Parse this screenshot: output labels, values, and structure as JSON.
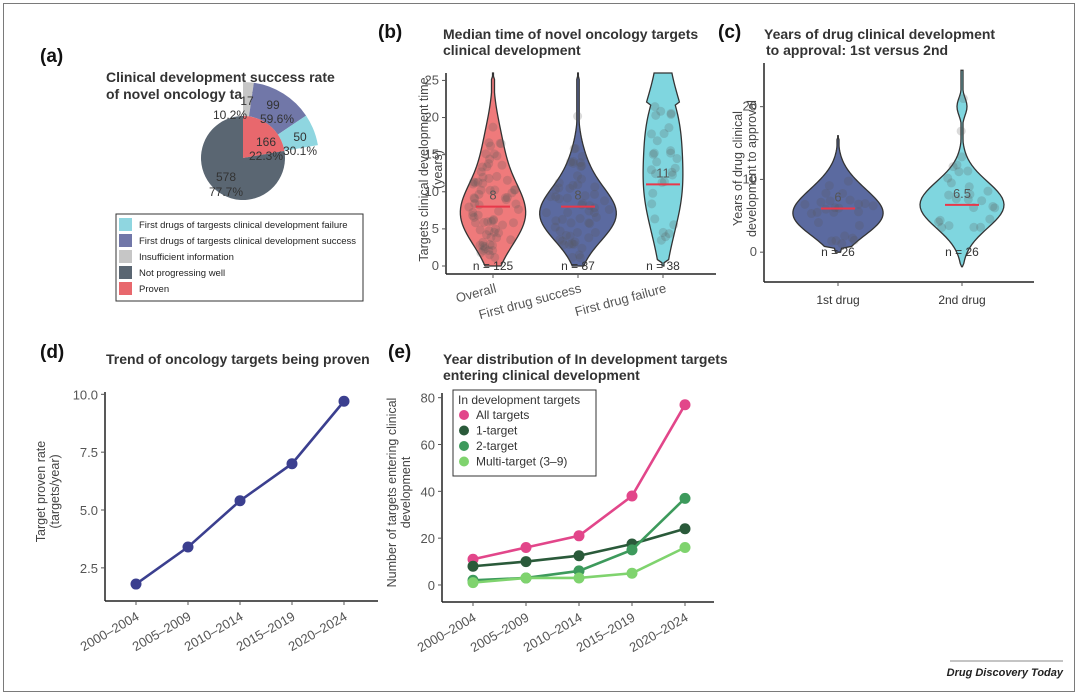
{
  "figure": {
    "credit": "Drug Discovery Today"
  },
  "chart_data": [
    {
      "id": "a",
      "panel_label": "(a)",
      "type": "pie",
      "title": [
        "Clinical development success rate",
        "of novel oncology targets"
      ],
      "inner_pie": {
        "slices": [
          {
            "name": "Proven",
            "count": 166,
            "pct": "22.3%",
            "value": 22.3,
            "color": "#e8686d"
          },
          {
            "name": "Not progressing well",
            "count": 578,
            "pct": "77.7%",
            "value": 77.7,
            "color": "#5a6672"
          }
        ]
      },
      "exploded_proven": {
        "slices": [
          {
            "name": "Insufficient information",
            "count": 17,
            "pct": "10.2%",
            "value": 10.2,
            "color": "#c6c6c6"
          },
          {
            "name": "First drugs of targests clinical development success",
            "count": 99,
            "pct": "59.6%",
            "value": 59.6,
            "color": "#7177a8"
          },
          {
            "name": "First drugs of targests clinical development failure",
            "count": 50,
            "pct": "30.1%",
            "value": 30.1,
            "color": "#8fd6e0"
          }
        ]
      },
      "legend": [
        {
          "label": "First drugs of targests clinical development failure",
          "color": "#8fd6e0"
        },
        {
          "label": "First drugs of targests clinical development success",
          "color": "#7177a8"
        },
        {
          "label": "Insufficient information",
          "color": "#c6c6c6"
        },
        {
          "label": "Not progressing well",
          "color": "#5a6672"
        },
        {
          "label": "Proven",
          "color": "#e8686d"
        }
      ]
    },
    {
      "id": "b",
      "panel_label": "(b)",
      "type": "violin",
      "title": [
        "Median time of novel oncology targets",
        "clinical development"
      ],
      "ylabel": [
        "Targets clinical development time",
        "(years)"
      ],
      "ylim": [
        0,
        26
      ],
      "yticks": [
        0,
        5,
        10,
        15,
        20,
        25
      ],
      "categories": [
        "Overall",
        "First drug success",
        "First drug failure"
      ],
      "groups": [
        {
          "name": "Overall",
          "median": 8,
          "median_label": "8",
          "n_label": "n = 125",
          "min": 0,
          "max": 26,
          "color": "#ef7a7b"
        },
        {
          "name": "First drug success",
          "median": 8,
          "median_label": "8",
          "n_label": "n = 87",
          "min": 0,
          "max": 26,
          "color": "#5b6aa0"
        },
        {
          "name": "First drug failure",
          "median": 11,
          "median_label": "11",
          "n_label": "n = 38",
          "min": 0,
          "max": 26,
          "color": "#7fd6df"
        }
      ]
    },
    {
      "id": "c",
      "panel_label": "(c)",
      "type": "violin",
      "title": [
        "Years of drug clinical development",
        "to approval: 1st versus 2nd"
      ],
      "ylabel": [
        "Years of drug clinical",
        "development to approval"
      ],
      "ylim": [
        -3,
        26
      ],
      "yticks": [
        0,
        10,
        20
      ],
      "categories": [
        "1st drug",
        "2nd drug"
      ],
      "groups": [
        {
          "name": "1st drug",
          "median": 6,
          "median_label": "6",
          "n_label": "n = 26",
          "min": 0,
          "max": 16,
          "color": "#5b6aa0"
        },
        {
          "name": "2nd drug",
          "median": 6.5,
          "median_label": "6.5",
          "n_label": "n = 26",
          "min": -2,
          "max": 25,
          "color": "#7fd6df"
        }
      ]
    },
    {
      "id": "d",
      "panel_label": "(d)",
      "type": "line",
      "title": "Trend of oncology targets being proven",
      "ylabel": [
        "Target proven rate",
        "(targets/year)"
      ],
      "categories": [
        "2000–2004",
        "2005–2009",
        "2010–2014",
        "2015–2019",
        "2020–2024"
      ],
      "ylim": [
        1.5,
        10.1
      ],
      "yticks": [
        "2.5",
        "5.0",
        "7.5",
        "10.0"
      ],
      "series": [
        {
          "name": "Proven rate",
          "values": [
            1.8,
            3.4,
            5.4,
            7.0,
            9.7
          ],
          "color": "#3b3f8f"
        }
      ]
    },
    {
      "id": "e",
      "panel_label": "(e)",
      "type": "line",
      "title": [
        "Year distribution of In development targets",
        "entering clinical development"
      ],
      "ylabel": [
        "Number of targets entering clinical",
        "development"
      ],
      "categories": [
        "2000–2004",
        "2005–2009",
        "2010–2014",
        "2015–2019",
        "2020–2024"
      ],
      "ylim": [
        -3,
        82
      ],
      "yticks": [
        0,
        20,
        40,
        60,
        80
      ],
      "legend_title": "In development targets",
      "legend_position": "top-left",
      "series": [
        {
          "name": "All targets",
          "values": [
            11,
            16,
            21,
            38,
            77
          ],
          "color": "#e2468a"
        },
        {
          "name": "1-target",
          "values": [
            8,
            10,
            12.5,
            17.5,
            24
          ],
          "color": "#2a5a3a"
        },
        {
          "name": "2-target",
          "values": [
            2,
            3,
            6,
            15,
            37
          ],
          "color": "#3d9a5c"
        },
        {
          "name": "Multi-target (3–9)",
          "values": [
            1,
            3,
            3,
            5,
            16
          ],
          "color": "#7fd36e"
        }
      ]
    }
  ]
}
